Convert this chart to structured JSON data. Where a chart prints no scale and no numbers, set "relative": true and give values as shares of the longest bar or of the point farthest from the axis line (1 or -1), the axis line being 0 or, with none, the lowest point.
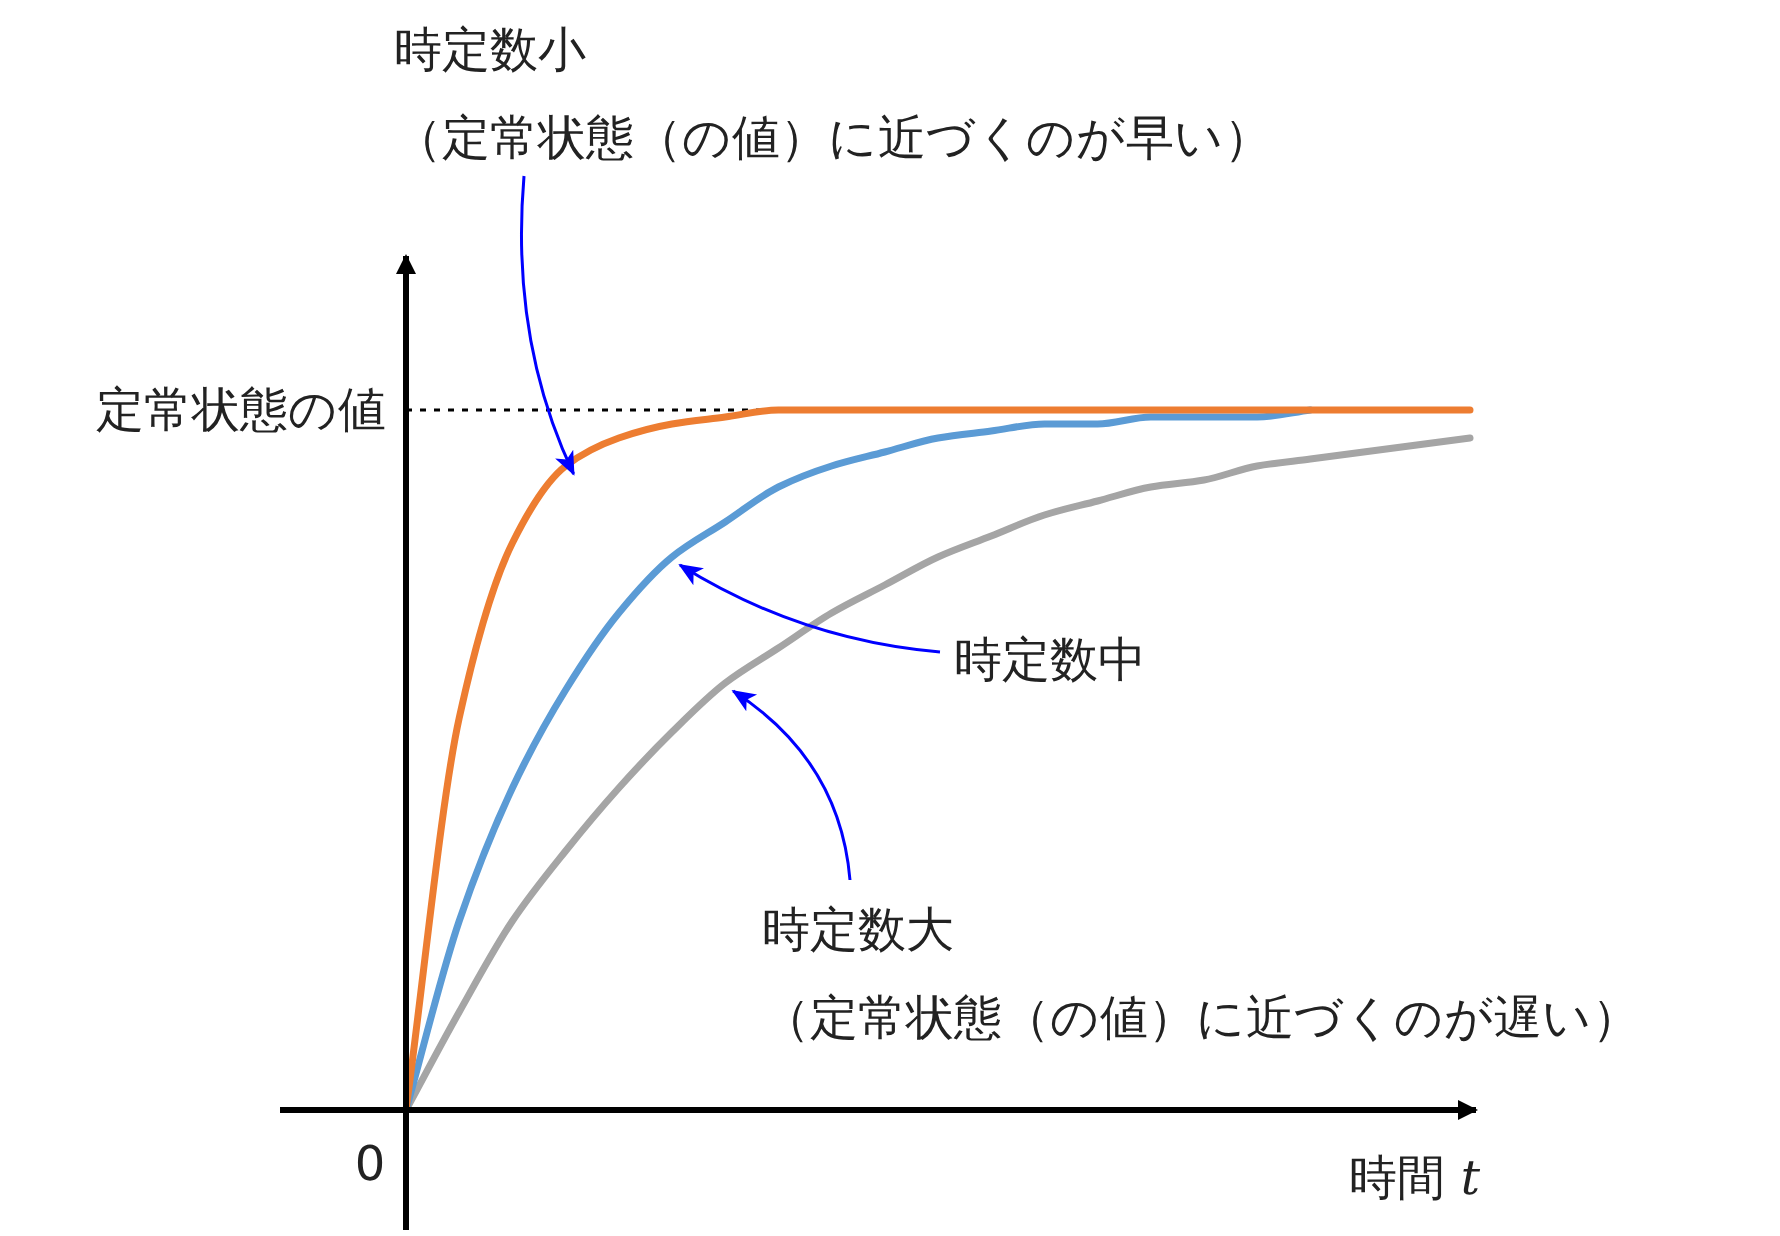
{
  "chart_data": {
    "type": "line",
    "relative": true,
    "categories": [
      null,
      null,
      null,
      null,
      null,
      null,
      null,
      null,
      null,
      null,
      null,
      null,
      null,
      null,
      null,
      null,
      null,
      null,
      null,
      null,
      null
    ],
    "series": [
      {
        "color": "#ed7d31",
        "values": [
          0,
          0.56,
          0.81,
          0.92,
          0.96,
          0.98,
          0.99,
          1,
          1,
          1,
          1,
          1,
          1,
          1,
          1,
          1,
          1,
          1,
          1,
          1,
          1
        ]
      },
      {
        "color": "#5b9bd5",
        "values": [
          0,
          0.27,
          0.46,
          0.6,
          0.71,
          0.79,
          0.84,
          0.89,
          0.92,
          0.94,
          0.96,
          0.97,
          0.98,
          0.98,
          0.99,
          0.99,
          0.99,
          1,
          null,
          null,
          null
        ]
      },
      {
        "color": "#a5a5a5",
        "values": [
          0,
          0.14,
          0.27,
          0.37,
          0.46,
          0.54,
          0.61,
          0.66,
          0.71,
          0.75,
          0.79,
          0.82,
          0.85,
          0.87,
          0.89,
          0.9,
          0.92,
          0.93,
          0.94,
          0.95,
          0.96
        ]
      }
    ],
    "xlabel": "時間 *t*",
    "ref_lines": [
      {
        "axis": "y",
        "value": 1,
        "label": "定常状態の値",
        "color": "#000000",
        "line_style": "dotted"
      }
    ],
    "annotations": [
      "時定数小",
      "（定常状態（の値）に近づくのが早い）",
      "時定数中",
      "時定数大",
      "（定常状態（の値）に近づくのが遅い）",
      "0"
    ]
  }
}
